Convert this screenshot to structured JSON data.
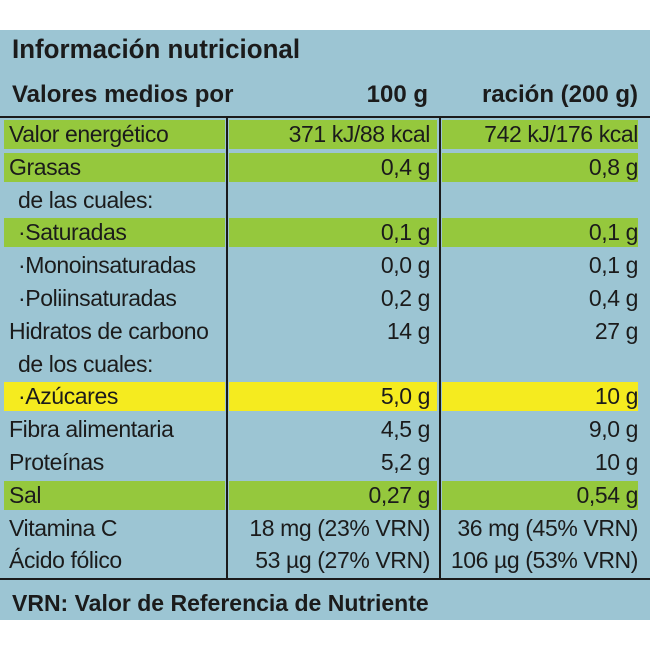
{
  "title": "Información nutricional",
  "header": {
    "label": "Valores medios por",
    "col1": "100 g",
    "col2": "ración (200 g)"
  },
  "rows": [
    {
      "label": "Valor energético",
      "v1": "371 kJ/88 kcal",
      "v2": "742 kJ/176 kcal",
      "highlight": "green"
    },
    {
      "label": "Grasas",
      "v1": "0,4 g",
      "v2": "0,8 g",
      "highlight": "green"
    },
    {
      "label": "de las cuales:",
      "v1": "",
      "v2": "",
      "highlight": "none"
    },
    {
      "label": "·Saturadas",
      "v1": "0,1 g",
      "v2": "0,1 g",
      "highlight": "green"
    },
    {
      "label": "·Monoinsaturadas",
      "v1": "0,0 g",
      "v2": "0,1 g",
      "highlight": "none"
    },
    {
      "label": "·Poliinsaturadas",
      "v1": "0,2 g",
      "v2": "0,4 g",
      "highlight": "none"
    },
    {
      "label": "Hidratos de carbono",
      "v1": "14 g",
      "v2": "27 g",
      "highlight": "none"
    },
    {
      "label": "de los cuales:",
      "v1": "",
      "v2": "",
      "highlight": "none"
    },
    {
      "label": "·Azúcares",
      "v1": "5,0 g",
      "v2": "10 g",
      "highlight": "yellow"
    },
    {
      "label": "Fibra alimentaria",
      "v1": "4,5 g",
      "v2": "9,0 g",
      "highlight": "none"
    },
    {
      "label": "Proteínas",
      "v1": "5,2 g",
      "v2": "10 g",
      "highlight": "none"
    },
    {
      "label": "Sal",
      "v1": "0,27 g",
      "v2": "0,54 g",
      "highlight": "green"
    },
    {
      "label": "Vitamina C",
      "v1": "18 mg (23% VRN)",
      "v2": "36 mg (45% VRN)",
      "highlight": "none"
    },
    {
      "label": "Ácido fólico",
      "v1": "53 µg (27% VRN)",
      "v2": "106 µg (53% VRN)",
      "highlight": "none"
    }
  ],
  "footer": "VRN: Valor de Referencia de Nutriente",
  "colors": {
    "panel": "#9cc5d3",
    "highlight_green": "#95c83d",
    "highlight_yellow": "#f5eb1f",
    "text": "#1b1b1b"
  }
}
